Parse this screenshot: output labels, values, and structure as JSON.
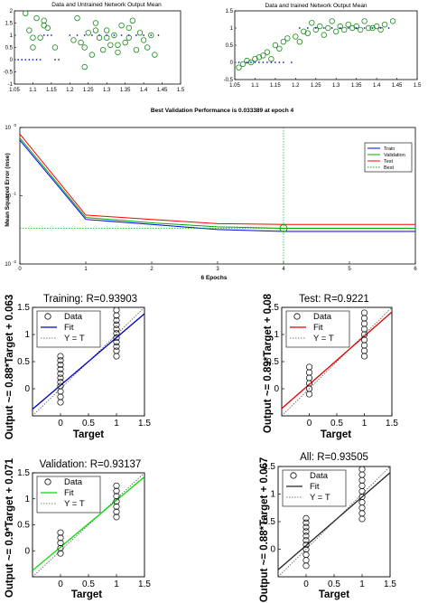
{
  "chart_data": [
    {
      "type": "scatter",
      "title": "Data and Untrained Network Output Mean",
      "xlim": [
        1.05,
        1.5
      ],
      "ylim": [
        -1,
        2
      ],
      "xticks": [
        "1.05",
        "1.1",
        "1.15",
        "1.2",
        "1.25",
        "1.3",
        "1.35",
        "1.4",
        "1.45",
        "1.5"
      ],
      "yticks": [
        "-1",
        "-0.5",
        "0",
        "0.5",
        "1",
        "1.5",
        "2"
      ],
      "colors": {
        "data": "#1a8a1a",
        "output": "#1a1acc"
      },
      "series": [
        {
          "marker": "circle",
          "x": [
            1.08,
            1.09,
            1.1,
            1.11,
            1.12,
            1.13,
            1.14,
            1.16,
            1.21,
            1.22,
            1.23,
            1.24,
            1.25,
            1.26,
            1.27,
            1.28,
            1.29,
            1.3,
            1.31,
            1.32,
            1.33,
            1.34,
            1.35,
            1.36,
            1.37,
            1.38,
            1.39,
            1.4,
            1.41,
            1.42,
            1.43,
            1.1,
            1.13,
            1.24,
            1.27,
            1.3,
            1.33,
            1.36
          ],
          "y": [
            1.9,
            1.2,
            0.5,
            1.7,
            0.9,
            1.6,
            1.3,
            0.5,
            0.8,
            1.7,
            0.7,
            -0.3,
            1.1,
            0.2,
            1.5,
            0.9,
            0.4,
            1.2,
            0.6,
            1.0,
            0.3,
            1.4,
            0.7,
            0.9,
            1.6,
            0.4,
            1.1,
            0.8,
            0.5,
            1.0,
            0.2,
            0.9,
            1.4,
            0.5,
            1.2,
            0.9,
            0.6,
            1.3
          ]
        },
        {
          "marker": "point",
          "x": [
            1.06,
            1.07,
            1.08,
            1.09,
            1.1,
            1.11,
            1.12,
            1.13,
            1.14,
            1.15,
            1.16,
            1.17,
            1.2,
            1.22,
            1.24,
            1.26,
            1.28,
            1.3,
            1.32,
            1.34,
            1.36,
            1.38,
            1.4,
            1.42,
            1.44
          ],
          "y": [
            0,
            0,
            0,
            0,
            0,
            0,
            0,
            1,
            1,
            1,
            0,
            0,
            1,
            1,
            1,
            1,
            1,
            1,
            1,
            1,
            1,
            1,
            1,
            1,
            1
          ]
        }
      ]
    },
    {
      "type": "scatter",
      "title": "Data and trained Network Output Mean",
      "xlim": [
        1.05,
        1.5
      ],
      "ylim": [
        -0.5,
        1.5
      ],
      "xticks": [
        "1.05",
        "1.1",
        "1.15",
        "1.2",
        "1.25",
        "1.3",
        "1.35",
        "1.4",
        "1.45",
        "1.5"
      ],
      "yticks": [
        "-0.5",
        "0",
        "0.5",
        "1",
        "1.5"
      ],
      "colors": {
        "data": "#1a8a1a",
        "output": "#1a1acc"
      },
      "series": [
        {
          "marker": "circle",
          "x": [
            1.06,
            1.07,
            1.08,
            1.09,
            1.1,
            1.11,
            1.12,
            1.13,
            1.14,
            1.15,
            1.16,
            1.17,
            1.18,
            1.2,
            1.21,
            1.22,
            1.23,
            1.24,
            1.25,
            1.26,
            1.27,
            1.28,
            1.29,
            1.3,
            1.31,
            1.32,
            1.33,
            1.34,
            1.35,
            1.36,
            1.37,
            1.38,
            1.39,
            1.4,
            1.41,
            1.42,
            1.44
          ],
          "y": [
            -0.15,
            -0.05,
            0.05,
            0.0,
            0.1,
            0.15,
            0.2,
            0.3,
            0.1,
            0.5,
            0.4,
            0.6,
            0.7,
            0.75,
            0.6,
            0.9,
            0.85,
            1.15,
            0.95,
            1.05,
            0.8,
            1.0,
            1.2,
            0.9,
            1.05,
            0.95,
            1.1,
            1.0,
            1.05,
            0.95,
            1.2,
            1.0,
            1.0,
            1.05,
            0.95,
            1.1,
            1.2
          ]
        },
        {
          "marker": "point",
          "x": [
            1.06,
            1.08,
            1.09,
            1.1,
            1.11,
            1.12,
            1.13,
            1.14,
            1.15,
            1.16,
            1.17,
            1.19,
            1.21,
            1.23,
            1.25,
            1.27,
            1.29,
            1.31,
            1.33,
            1.35,
            1.37,
            1.39,
            1.41,
            1.43
          ],
          "y": [
            0,
            0,
            0,
            0,
            0,
            0,
            0,
            0,
            0,
            0,
            0,
            0,
            1,
            1,
            1,
            1,
            1,
            1,
            1,
            1,
            1,
            1,
            1,
            1
          ]
        }
      ]
    },
    {
      "type": "line",
      "title": "Best Validation Performance is 0.033389 at epoch 4",
      "xlabel": "6 Epochs",
      "ylabel": "Mean Squared Error  (mse)",
      "yscale": "log",
      "xlim": [
        0,
        6
      ],
      "ylim": [
        0.01,
        1
      ],
      "xticks": [
        "0",
        "1",
        "2",
        "3",
        "4",
        "5",
        "6"
      ],
      "yticks": [
        "10",
        "10",
        "10"
      ],
      "ytick_exponents": [
        "0",
        "-1",
        "-2"
      ],
      "x": [
        0,
        1,
        2,
        3,
        4,
        5,
        6
      ],
      "legend_position": "top-right",
      "series": [
        {
          "name": "Train",
          "color": "#0000ff",
          "values": [
            0.65,
            0.045,
            0.038,
            0.032,
            0.03,
            0.03,
            0.03
          ]
        },
        {
          "name": "Validation",
          "color": "#00aa00",
          "values": [
            0.7,
            0.048,
            0.04,
            0.035,
            0.0334,
            0.0334,
            0.0334
          ]
        },
        {
          "name": "Test",
          "color": "#ff0000",
          "values": [
            0.8,
            0.052,
            0.045,
            0.039,
            0.038,
            0.038,
            0.038
          ]
        },
        {
          "name": "Best",
          "color": "#00aa00",
          "style": "dotted"
        }
      ],
      "best": {
        "epoch": 4,
        "value": 0.033389
      }
    },
    {
      "type": "scatter",
      "title": "Training: R=0.93903",
      "xlabel": "Target",
      "ylabel": "Output ~= 0.88*Target + 0.063",
      "xlim": [
        -0.5,
        1.5
      ],
      "ylim": [
        -0.5,
        1.5
      ],
      "xticks": [
        "0",
        "0.5",
        "1",
        "1.5"
      ],
      "yticks": [
        "0",
        "0.5",
        "1",
        "1.5"
      ],
      "legend": [
        "Data",
        "Fit",
        "Y = T"
      ],
      "fit": {
        "slope": 0.88,
        "intercept": 0.063,
        "color": "#0000c0"
      },
      "points": [
        {
          "x": 0,
          "y": -0.25
        },
        {
          "x": 0,
          "y": -0.15
        },
        {
          "x": 0,
          "y": -0.05
        },
        {
          "x": 0,
          "y": 0.05
        },
        {
          "x": 0,
          "y": 0.12
        },
        {
          "x": 0,
          "y": 0.2
        },
        {
          "x": 0,
          "y": 0.28
        },
        {
          "x": 0,
          "y": 0.36
        },
        {
          "x": 0,
          "y": 0.44
        },
        {
          "x": 0,
          "y": 0.52
        },
        {
          "x": 0,
          "y": 0.6
        },
        {
          "x": 1,
          "y": 0.6
        },
        {
          "x": 1,
          "y": 0.7
        },
        {
          "x": 1,
          "y": 0.78
        },
        {
          "x": 1,
          "y": 0.86
        },
        {
          "x": 1,
          "y": 0.94
        },
        {
          "x": 1,
          "y": 1.02
        },
        {
          "x": 1,
          "y": 1.1
        },
        {
          "x": 1,
          "y": 1.18
        },
        {
          "x": 1,
          "y": 1.26
        },
        {
          "x": 1,
          "y": 1.35
        },
        {
          "x": 1,
          "y": 1.45
        }
      ]
    },
    {
      "type": "scatter",
      "title": "Test: R=0.9221",
      "xlabel": "Target",
      "ylabel": "Output ~= 0.89*Target + 0.08",
      "xlim": [
        -0.5,
        1.5
      ],
      "ylim": [
        -0.5,
        1.5
      ],
      "xticks": [
        "0",
        "0.5",
        "1",
        "1.5"
      ],
      "yticks": [
        "0",
        "0.5",
        "1",
        "1.5"
      ],
      "legend": [
        "Data",
        "Fit",
        "Y = T"
      ],
      "fit": {
        "slope": 0.89,
        "intercept": 0.08,
        "color": "#e00000"
      },
      "points": [
        {
          "x": 0,
          "y": -0.1
        },
        {
          "x": 0,
          "y": 0.0
        },
        {
          "x": 0,
          "y": 0.1
        },
        {
          "x": 0,
          "y": 0.2
        },
        {
          "x": 0,
          "y": 0.3
        },
        {
          "x": 0,
          "y": 0.4
        },
        {
          "x": 1,
          "y": 0.6
        },
        {
          "x": 1,
          "y": 0.7
        },
        {
          "x": 1,
          "y": 0.8
        },
        {
          "x": 1,
          "y": 0.9
        },
        {
          "x": 1,
          "y": 1.0
        },
        {
          "x": 1,
          "y": 1.1
        },
        {
          "x": 1,
          "y": 1.2
        },
        {
          "x": 1,
          "y": 1.3
        },
        {
          "x": 1,
          "y": 1.4
        }
      ]
    },
    {
      "type": "scatter",
      "title": "Validation: R=0.93137",
      "xlabel": "Target",
      "ylabel": "Output ~= 0.9*Target + 0.071",
      "xlim": [
        -0.5,
        1.5
      ],
      "ylim": [
        -0.5,
        1.5
      ],
      "xticks": [
        "0",
        "0.5",
        "1",
        "1.5"
      ],
      "yticks": [
        "0",
        "0.5",
        "1",
        "1.5"
      ],
      "legend": [
        "Data",
        "Fit",
        "Y = T"
      ],
      "fit": {
        "slope": 0.9,
        "intercept": 0.071,
        "color": "#00dd00"
      },
      "points": [
        {
          "x": 0,
          "y": -0.05
        },
        {
          "x": 0,
          "y": 0.05
        },
        {
          "x": 0,
          "y": 0.15
        },
        {
          "x": 0,
          "y": 0.25
        },
        {
          "x": 0,
          "y": 0.35
        },
        {
          "x": 1,
          "y": 0.65
        },
        {
          "x": 1,
          "y": 0.75
        },
        {
          "x": 1,
          "y": 0.85
        },
        {
          "x": 1,
          "y": 0.95
        },
        {
          "x": 1,
          "y": 1.05
        },
        {
          "x": 1,
          "y": 1.15
        },
        {
          "x": 1,
          "y": 1.25
        }
      ]
    },
    {
      "type": "scatter",
      "title": "All: R=0.93505",
      "xlabel": "Target",
      "ylabel": "Output ~= 0.88*Target + 0.067",
      "xlim": [
        -0.5,
        1.5
      ],
      "ylim": [
        -0.5,
        1.5
      ],
      "xticks": [
        "0",
        "0.5",
        "1",
        "1.5"
      ],
      "yticks": [
        "0",
        "0.5",
        "1",
        "1.5"
      ],
      "legend": [
        "Data",
        "Fit",
        "Y = T"
      ],
      "fit": {
        "slope": 0.88,
        "intercept": 0.067,
        "color": "#222222"
      },
      "points": [
        {
          "x": 0,
          "y": -0.3
        },
        {
          "x": 0,
          "y": -0.2
        },
        {
          "x": 0,
          "y": -0.1
        },
        {
          "x": 0,
          "y": 0.0
        },
        {
          "x": 0,
          "y": 0.08
        },
        {
          "x": 0,
          "y": 0.16
        },
        {
          "x": 0,
          "y": 0.24
        },
        {
          "x": 0,
          "y": 0.32
        },
        {
          "x": 0,
          "y": 0.4
        },
        {
          "x": 0,
          "y": 0.48
        },
        {
          "x": 0,
          "y": 0.56
        },
        {
          "x": 1,
          "y": 0.55
        },
        {
          "x": 1,
          "y": 0.65
        },
        {
          "x": 1,
          "y": 0.75
        },
        {
          "x": 1,
          "y": 0.85
        },
        {
          "x": 1,
          "y": 0.95
        },
        {
          "x": 1,
          "y": 1.05
        },
        {
          "x": 1,
          "y": 1.15
        },
        {
          "x": 1,
          "y": 1.25
        },
        {
          "x": 1,
          "y": 1.35
        },
        {
          "x": 1,
          "y": 1.45
        }
      ]
    }
  ]
}
